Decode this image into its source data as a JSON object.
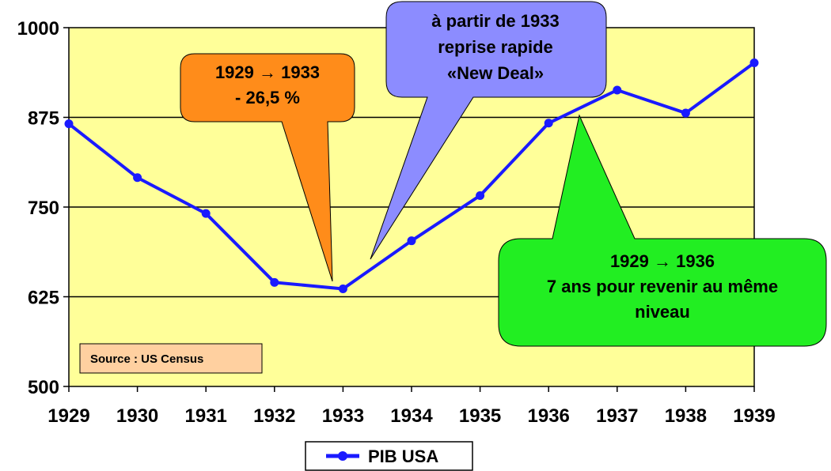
{
  "chart_data": {
    "type": "line",
    "categories": [
      "1929",
      "1930",
      "1931",
      "1932",
      "1933",
      "1934",
      "1935",
      "1936",
      "1937",
      "1938",
      "1939"
    ],
    "series": [
      {
        "name": "PIB USA",
        "values": [
          866,
          791,
          741,
          645,
          636,
          703,
          766,
          867,
          913,
          881,
          951
        ],
        "color": "#1a1aff"
      }
    ],
    "ylim": [
      500,
      1000
    ],
    "yticks": [
      "500",
      "625",
      "750",
      "875",
      "1000"
    ],
    "grid": true,
    "plot_background": "#ffff99",
    "legend_position": "bottom-center"
  },
  "annotations": {
    "crash": {
      "lines": [
        "1929 → 1933",
        "- 26,5 %"
      ],
      "color": "#ff8c1a"
    },
    "new_deal": {
      "lines": [
        "à partir de 1933",
        "reprise rapide",
        "«New Deal»"
      ],
      "color": "#8c8cff"
    },
    "recovery": {
      "lines": [
        "1929 → 1936",
        "7 ans pour revenir au même",
        "niveau"
      ],
      "color": "#22ee22"
    }
  },
  "source": {
    "text": "Source : US Census",
    "color": "#ffd0a0"
  }
}
